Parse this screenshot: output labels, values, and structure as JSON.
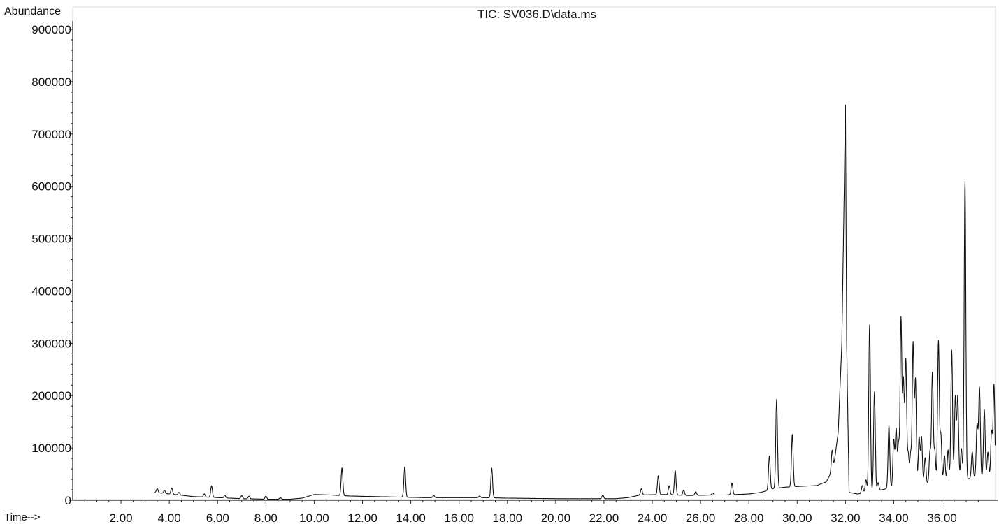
{
  "chart_data": {
    "type": "line",
    "title": "TIC: SV036.D\\data.ms",
    "ylabel": "Abundance",
    "xlabel": "Time-->",
    "xlim": [
      0.0,
      38.3
    ],
    "ylim": [
      0,
      900000
    ],
    "grid": false,
    "legend": "none",
    "x_ticks": [
      2,
      4,
      6,
      8,
      10,
      12,
      14,
      16,
      18,
      20,
      22,
      24,
      26,
      28,
      30,
      32,
      34,
      36
    ],
    "x_tick_labels": [
      "2.00",
      "4.00",
      "6.00",
      "8.00",
      "10.00",
      "12.00",
      "14.00",
      "16.00",
      "18.00",
      "20.00",
      "22.00",
      "24.00",
      "26.00",
      "28.00",
      "30.00",
      "32.00",
      "34.00",
      "36.00"
    ],
    "y_ticks": [
      0,
      100000,
      200000,
      300000,
      400000,
      500000,
      600000,
      700000,
      800000,
      900000
    ],
    "y_tick_labels": [
      "0",
      "100000",
      "200000",
      "300000",
      "400000",
      "500000",
      "600000",
      "700000",
      "800000",
      "900000"
    ],
    "series": [
      {
        "color": "#111111",
        "baseline": [
          [
            3.4,
            15000
          ],
          [
            4.0,
            12000
          ],
          [
            5.0,
            7000
          ],
          [
            6.0,
            5000
          ],
          [
            7.0,
            3000
          ],
          [
            8.0,
            2000
          ],
          [
            9.0,
            2000
          ],
          [
            9.5,
            4000
          ],
          [
            10.0,
            11000
          ],
          [
            10.7,
            10000
          ],
          [
            11.5,
            8000
          ],
          [
            12.5,
            7000
          ],
          [
            13.5,
            6000
          ],
          [
            14.5,
            5000
          ],
          [
            16.0,
            5000
          ],
          [
            17.0,
            5000
          ],
          [
            18.0,
            4000
          ],
          [
            20.0,
            3000
          ],
          [
            21.5,
            3000
          ],
          [
            22.5,
            3000
          ],
          [
            23.0,
            5000
          ],
          [
            23.5,
            10000
          ],
          [
            24.5,
            11000
          ],
          [
            25.5,
            9000
          ],
          [
            26.5,
            10000
          ],
          [
            27.0,
            10000
          ],
          [
            28.0,
            12000
          ],
          [
            28.5,
            15000
          ],
          [
            29.0,
            22000
          ],
          [
            29.5,
            25000
          ],
          [
            30.3,
            27000
          ],
          [
            30.8,
            28000
          ],
          [
            31.2,
            35000
          ],
          [
            31.5,
            60000
          ],
          [
            31.7,
            130000
          ],
          [
            31.85,
            300000
          ],
          [
            31.95,
            600000
          ],
          [
            32.0,
            755000
          ],
          [
            32.05,
            300000
          ],
          [
            32.15,
            15000
          ],
          [
            32.5,
            12000
          ],
          [
            33.0,
            15000
          ],
          [
            33.5,
            20000
          ],
          [
            34.0,
            25000
          ],
          [
            35.0,
            30000
          ],
          [
            36.0,
            35000
          ],
          [
            37.0,
            40000
          ],
          [
            37.5,
            45000
          ],
          [
            38.2,
            40000
          ]
        ],
        "peaks": [
          [
            3.5,
            8000
          ],
          [
            3.8,
            6000
          ],
          [
            4.1,
            12000
          ],
          [
            4.4,
            5000
          ],
          [
            5.45,
            6000
          ],
          [
            5.75,
            22000
          ],
          [
            6.3,
            5000
          ],
          [
            7.0,
            6000
          ],
          [
            7.3,
            5000
          ],
          [
            8.0,
            6000
          ],
          [
            8.6,
            3000
          ],
          [
            11.15,
            53000
          ],
          [
            13.75,
            58000
          ],
          [
            14.95,
            4000
          ],
          [
            16.85,
            3000
          ],
          [
            17.35,
            57000
          ],
          [
            21.95,
            7000
          ],
          [
            23.55,
            12000
          ],
          [
            24.25,
            36000
          ],
          [
            24.7,
            17000
          ],
          [
            24.95,
            47000
          ],
          [
            25.3,
            10000
          ],
          [
            25.8,
            7000
          ],
          [
            26.5,
            4000
          ],
          [
            27.3,
            22000
          ],
          [
            28.85,
            65000
          ],
          [
            29.15,
            170000
          ],
          [
            29.8,
            100000
          ],
          [
            31.45,
            40000
          ],
          [
            32.7,
            15000
          ],
          [
            32.85,
            25000
          ],
          [
            33.0,
            320000
          ],
          [
            33.2,
            190000
          ],
          [
            33.35,
            15000
          ],
          [
            33.8,
            120000
          ],
          [
            34.0,
            90000
          ],
          [
            34.1,
            110000
          ],
          [
            34.2,
            80000
          ],
          [
            34.3,
            320000
          ],
          [
            34.4,
            200000
          ],
          [
            34.5,
            240000
          ],
          [
            34.6,
            60000
          ],
          [
            34.7,
            60000
          ],
          [
            34.8,
            270000
          ],
          [
            34.9,
            200000
          ],
          [
            35.05,
            90000
          ],
          [
            35.15,
            90000
          ],
          [
            35.3,
            50000
          ],
          [
            35.5,
            60000
          ],
          [
            35.6,
            210000
          ],
          [
            35.7,
            60000
          ],
          [
            35.85,
            270000
          ],
          [
            35.95,
            90000
          ],
          [
            36.1,
            50000
          ],
          [
            36.25,
            60000
          ],
          [
            36.4,
            250000
          ],
          [
            36.55,
            160000
          ],
          [
            36.65,
            160000
          ],
          [
            36.8,
            60000
          ],
          [
            36.95,
            570000
          ],
          [
            37.25,
            50000
          ],
          [
            37.45,
            100000
          ],
          [
            37.55,
            170000
          ],
          [
            37.75,
            130000
          ],
          [
            37.9,
            50000
          ],
          [
            38.05,
            90000
          ],
          [
            38.15,
            180000
          ]
        ]
      }
    ]
  }
}
